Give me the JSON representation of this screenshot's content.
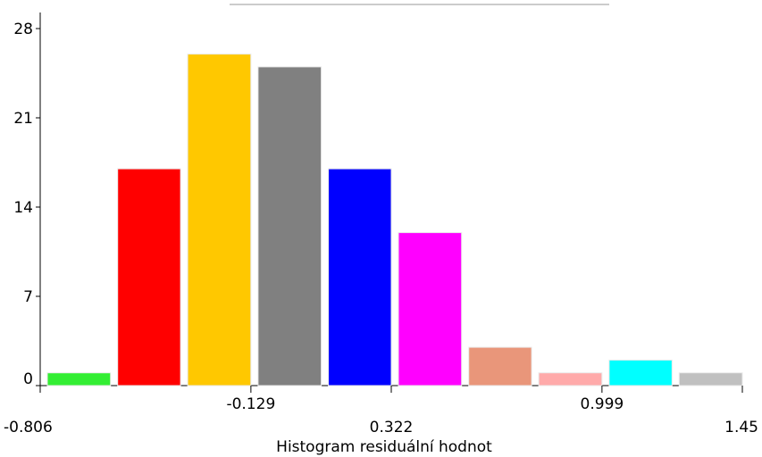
{
  "chart_data": {
    "type": "bar",
    "title": "",
    "xlabel": "Histogram residuální hodnot",
    "ylabel": "",
    "ylim": [
      0,
      28
    ],
    "yticks": [
      0,
      7,
      14,
      21,
      28
    ],
    "ytick_labels": [
      "0",
      "7",
      "14",
      "21",
      "28"
    ],
    "xlim": [
      -0.806,
      1.45
    ],
    "xticks_upper": [
      {
        "value": -0.129,
        "label": "-0.129"
      },
      {
        "value": 0.999,
        "label": "0.999"
      }
    ],
    "xticks_lower": [
      {
        "value": -0.806,
        "label": "-0.806"
      },
      {
        "value": 0.322,
        "label": "0.322"
      },
      {
        "value": 1.45,
        "label": "1.45"
      }
    ],
    "grid": false,
    "legend": "none",
    "bins": [
      {
        "start": -0.806,
        "end": -0.58,
        "value": 1,
        "color": "#33ee33"
      },
      {
        "start": -0.58,
        "end": -0.355,
        "value": 17,
        "color": "#ff0000"
      },
      {
        "start": -0.355,
        "end": -0.129,
        "value": 26,
        "color": "#ffc800"
      },
      {
        "start": -0.129,
        "end": 0.097,
        "value": 25,
        "color": "#808080"
      },
      {
        "start": 0.097,
        "end": 0.322,
        "value": 17,
        "color": "#0000ff"
      },
      {
        "start": 0.322,
        "end": 0.548,
        "value": 12,
        "color": "#ff00ff"
      },
      {
        "start": 0.548,
        "end": 0.773,
        "value": 3,
        "color": "#e9967a"
      },
      {
        "start": 0.773,
        "end": 0.999,
        "value": 1,
        "color": "#ffaaaa"
      },
      {
        "start": 0.999,
        "end": 1.224,
        "value": 2,
        "color": "#00ffff"
      },
      {
        "start": 1.224,
        "end": 1.45,
        "value": 1,
        "color": "#c0c0c0"
      }
    ]
  }
}
